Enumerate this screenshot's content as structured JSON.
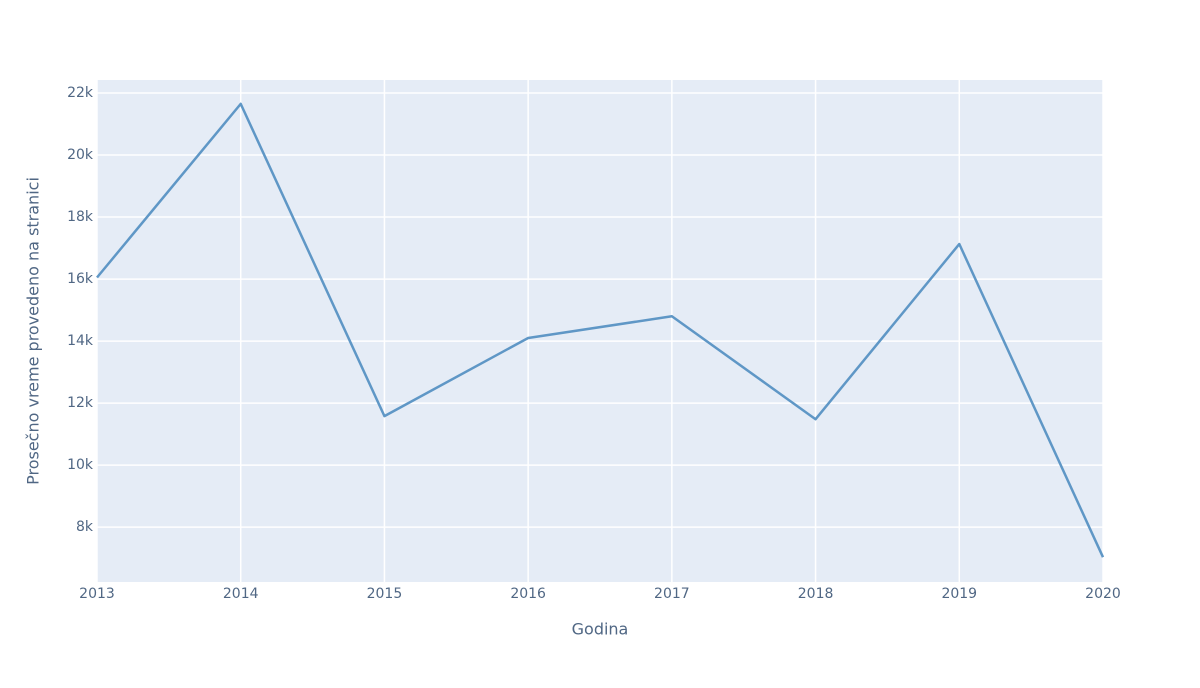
{
  "chart_data": {
    "type": "line",
    "x": [
      2013,
      2014,
      2015,
      2016,
      2017,
      2018,
      2019,
      2020
    ],
    "series": [
      {
        "color": "#5f97c6",
        "values": [
          16050,
          21650,
          11580,
          14100,
          14800,
          11480,
          17130,
          7030
        ]
      }
    ],
    "xlabel": "Godina",
    "ylabel": "Prosečno vreme provedeno na stranici",
    "xlim": [
      2013,
      2020
    ],
    "xticks": [
      2013,
      2014,
      2015,
      2016,
      2017,
      2018,
      2019,
      2020
    ],
    "ylim": [
      6230,
      22420
    ],
    "yticks": [
      {
        "value": 8000,
        "label": "8k"
      },
      {
        "value": 10000,
        "label": "10k"
      },
      {
        "value": 12000,
        "label": "12k"
      },
      {
        "value": 14000,
        "label": "14k"
      },
      {
        "value": 16000,
        "label": "16k"
      },
      {
        "value": 18000,
        "label": "18k"
      },
      {
        "value": 20000,
        "label": "20k"
      },
      {
        "value": 22000,
        "label": "22k"
      }
    ],
    "grid": true
  }
}
